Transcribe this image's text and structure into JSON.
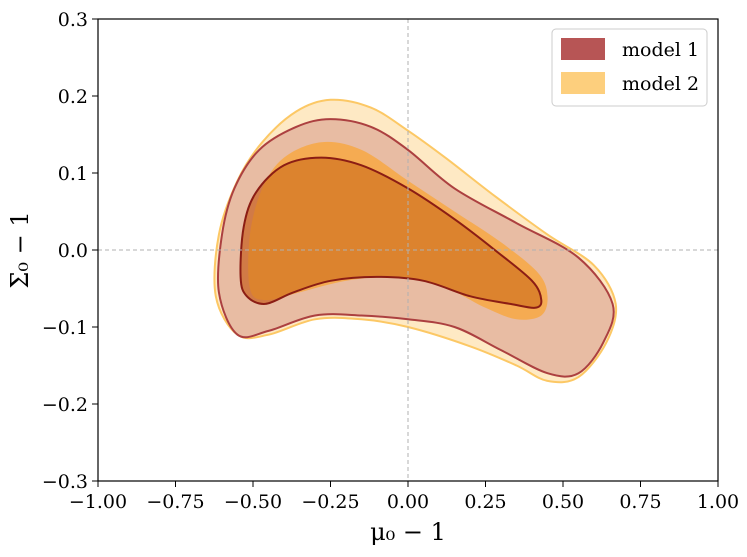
{
  "chart_data": {
    "type": "contour",
    "xlabel": "μ₀ − 1",
    "ylabel": "Σ₀ − 1",
    "xlim": [
      -1.0,
      1.0
    ],
    "ylim": [
      -0.3,
      0.3
    ],
    "xticks": [
      "−1.00",
      "−0.75",
      "−0.50",
      "−0.25",
      "0.00",
      "0.25",
      "0.50",
      "0.75",
      "1.00"
    ],
    "yticks": [
      "−0.3",
      "−0.2",
      "−0.1",
      "0.0",
      "0.1",
      "0.2",
      "0.3"
    ],
    "reference_lines": {
      "x": 0.0,
      "y": 0.0,
      "style": "dashed"
    },
    "legend": {
      "placement": "top-right"
    },
    "series": [
      {
        "name": "model 2",
        "outer_color": "#fdcf7d",
        "inner_color": "#f5a94b",
        "outer_line": "#fcc865",
        "outer_contour": [
          [
            -0.62,
            -0.06
          ],
          [
            -0.61,
            0.02
          ],
          [
            -0.55,
            0.09
          ],
          [
            -0.47,
            0.14
          ],
          [
            -0.36,
            0.18
          ],
          [
            -0.25,
            0.195
          ],
          [
            -0.12,
            0.185
          ],
          [
            0.0,
            0.155
          ],
          [
            0.12,
            0.12
          ],
          [
            0.28,
            0.07
          ],
          [
            0.45,
            0.02
          ],
          [
            0.6,
            -0.02
          ],
          [
            0.67,
            -0.07
          ],
          [
            0.64,
            -0.12
          ],
          [
            0.55,
            -0.165
          ],
          [
            0.45,
            -0.17
          ],
          [
            0.35,
            -0.15
          ],
          [
            0.2,
            -0.125
          ],
          [
            0.0,
            -0.1
          ],
          [
            -0.15,
            -0.09
          ],
          [
            -0.3,
            -0.09
          ],
          [
            -0.45,
            -0.11
          ],
          [
            -0.55,
            -0.11
          ]
        ],
        "inner_contour": [
          [
            -0.51,
            -0.05
          ],
          [
            -0.51,
            0.02
          ],
          [
            -0.47,
            0.08
          ],
          [
            -0.4,
            0.12
          ],
          [
            -0.28,
            0.14
          ],
          [
            -0.15,
            0.13
          ],
          [
            0.0,
            0.09
          ],
          [
            0.15,
            0.05
          ],
          [
            0.3,
            0.01
          ],
          [
            0.42,
            -0.03
          ],
          [
            0.45,
            -0.06
          ],
          [
            0.43,
            -0.085
          ],
          [
            0.35,
            -0.09
          ],
          [
            0.25,
            -0.075
          ],
          [
            0.1,
            -0.045
          ],
          [
            -0.05,
            -0.035
          ],
          [
            -0.2,
            -0.04
          ],
          [
            -0.35,
            -0.055
          ],
          [
            -0.46,
            -0.065
          ]
        ]
      },
      {
        "name": "model 1",
        "outer_color": "#b75555",
        "inner_color": "#cd6560",
        "outer_line": "#ac4040",
        "inner_line": "#8b1d14",
        "outer_contour": [
          [
            -0.61,
            -0.055
          ],
          [
            -0.6,
            0.02
          ],
          [
            -0.56,
            0.08
          ],
          [
            -0.48,
            0.13
          ],
          [
            -0.36,
            0.16
          ],
          [
            -0.25,
            0.17
          ],
          [
            -0.12,
            0.16
          ],
          [
            0.0,
            0.13
          ],
          [
            0.15,
            0.08
          ],
          [
            0.35,
            0.035
          ],
          [
            0.55,
            -0.01
          ],
          [
            0.66,
            -0.07
          ],
          [
            0.63,
            -0.12
          ],
          [
            0.55,
            -0.16
          ],
          [
            0.45,
            -0.16
          ],
          [
            0.3,
            -0.13
          ],
          [
            0.15,
            -0.1
          ],
          [
            0.0,
            -0.09
          ],
          [
            -0.15,
            -0.085
          ],
          [
            -0.3,
            -0.085
          ],
          [
            -0.45,
            -0.105
          ],
          [
            -0.55,
            -0.11
          ]
        ],
        "inner_contour": [
          [
            -0.54,
            -0.035
          ],
          [
            -0.53,
            0.03
          ],
          [
            -0.49,
            0.075
          ],
          [
            -0.4,
            0.11
          ],
          [
            -0.28,
            0.12
          ],
          [
            -0.15,
            0.11
          ],
          [
            0.0,
            0.08
          ],
          [
            0.15,
            0.04
          ],
          [
            0.28,
            0.0
          ],
          [
            0.4,
            -0.04
          ],
          [
            0.43,
            -0.065
          ],
          [
            0.41,
            -0.075
          ],
          [
            0.33,
            -0.07
          ],
          [
            0.2,
            -0.06
          ],
          [
            0.05,
            -0.04
          ],
          [
            -0.1,
            -0.035
          ],
          [
            -0.25,
            -0.04
          ],
          [
            -0.37,
            -0.055
          ],
          [
            -0.46,
            -0.07
          ],
          [
            -0.52,
            -0.06
          ]
        ]
      }
    ]
  }
}
